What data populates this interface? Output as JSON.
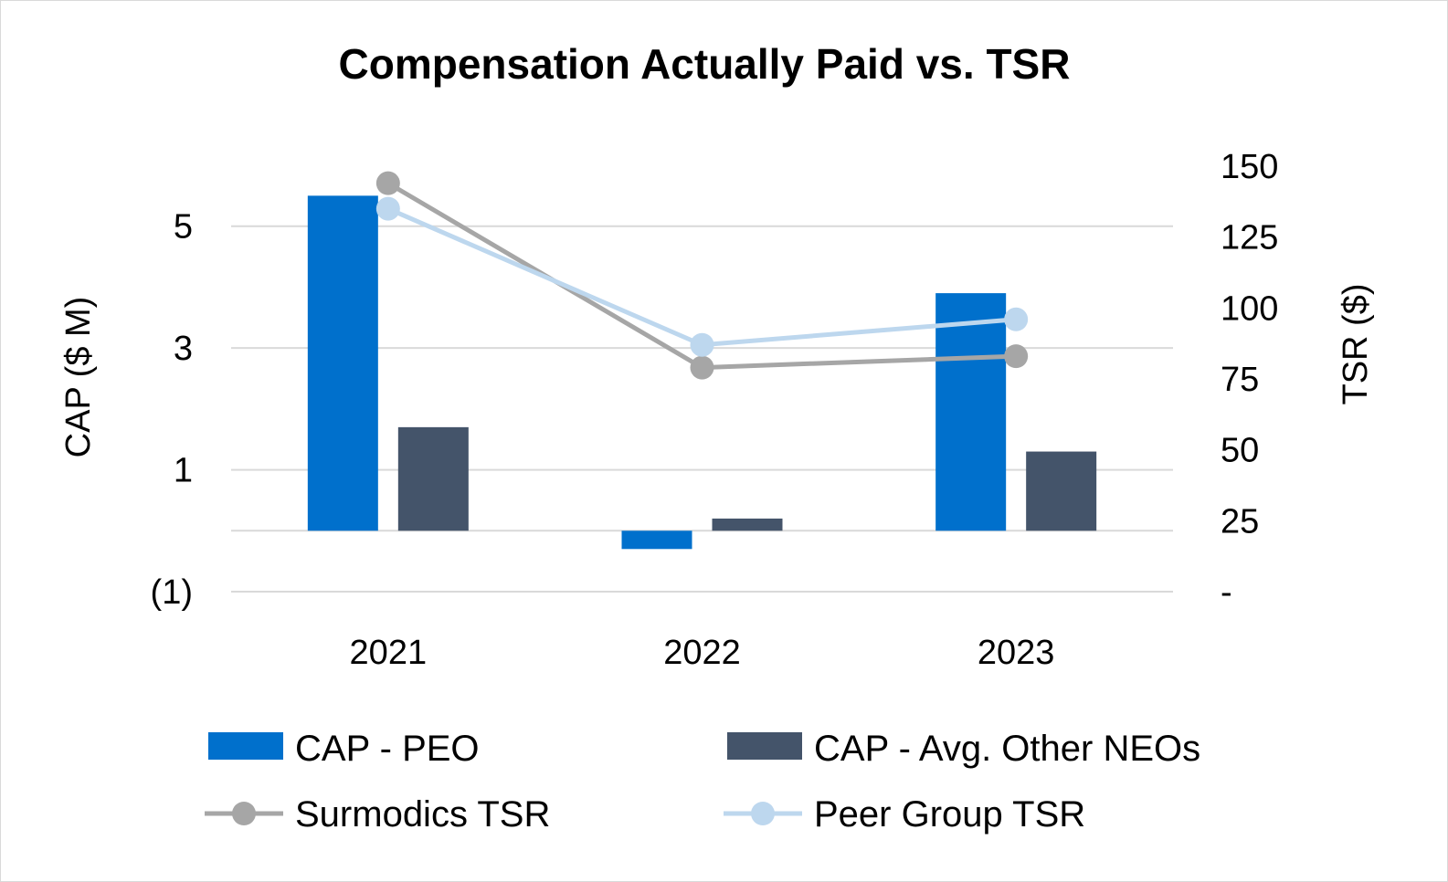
{
  "chart_data": {
    "type": "bar",
    "title": "Compensation Actually Paid vs. TSR",
    "categories": [
      "2021",
      "2022",
      "2023"
    ],
    "y_left": {
      "label": "CAP ($ M)",
      "range": [
        -1,
        6
      ],
      "ticks": [
        -1,
        1,
        3,
        5
      ],
      "tick_labels": [
        "(1)",
        "1",
        "3",
        "5"
      ]
    },
    "y_right": {
      "label": "TSR ($)",
      "range": [
        0,
        150
      ],
      "ticks": [
        0,
        25,
        50,
        75,
        100,
        125,
        150
      ],
      "tick_labels": [
        "-",
        "25",
        "50",
        "75",
        "100",
        "125",
        "150"
      ]
    },
    "bar_series": [
      {
        "name": "CAP - PEO",
        "color": "#0070cc",
        "values": [
          5.5,
          -0.3,
          3.9
        ]
      },
      {
        "name": "CAP - Avg. Other NEOs",
        "color": "#44546a",
        "values": [
          1.7,
          0.2,
          1.3
        ]
      }
    ],
    "line_series": [
      {
        "name": "Surmodics TSR",
        "color": "#a6a6a6",
        "values": [
          144,
          79,
          83
        ]
      },
      {
        "name": "Peer Group TSR",
        "color": "#bdd7ee",
        "values": [
          135,
          87,
          96
        ]
      }
    ],
    "grid": true,
    "legend_position": "bottom"
  }
}
